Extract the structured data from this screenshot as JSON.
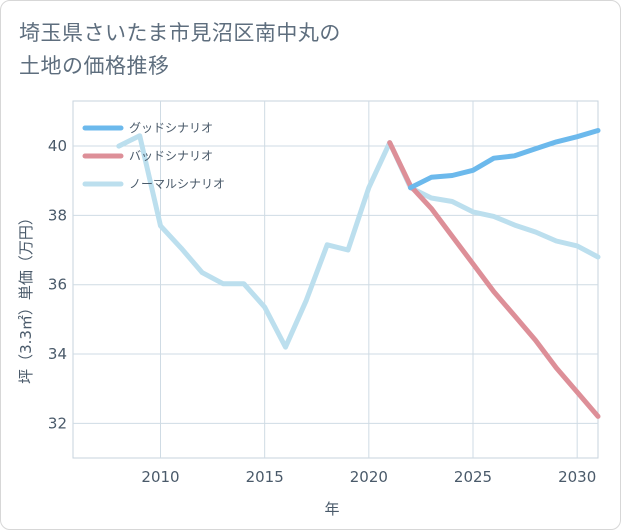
{
  "title_line1": "埼玉県さいたま市見沼区南中丸の",
  "title_line2": "土地の価格推移",
  "chart_data": {
    "type": "line",
    "title": "埼玉県さいたま市見沼区南中丸の土地の価格推移",
    "xlabel": "年",
    "ylabel": "坪（3.3㎡）単価（万円）",
    "xlim": [
      2005.8,
      2031
    ],
    "ylim": [
      31,
      41.3
    ],
    "xticks": [
      2010,
      2015,
      2020,
      2025,
      2030
    ],
    "yticks": [
      32,
      34,
      36,
      38,
      40
    ],
    "grid": true,
    "legend_position": "top-left",
    "series": [
      {
        "name": "グッドシナリオ",
        "color": "#6cb9ec",
        "x": [
          2022,
          2023,
          2024,
          2025,
          2026,
          2027,
          2028,
          2029,
          2030,
          2031
        ],
        "values": [
          38.8,
          39.1,
          39.15,
          39.3,
          39.65,
          39.72,
          39.92,
          40.12,
          40.27,
          40.45
        ]
      },
      {
        "name": "バッドシナリオ",
        "color": "#dd8f98",
        "x": [
          2021,
          2022,
          2023,
          2024,
          2025,
          2026,
          2027,
          2028,
          2029,
          2030,
          2031
        ],
        "values": [
          40.1,
          38.85,
          38.2,
          37.4,
          36.6,
          35.8,
          35.1,
          34.4,
          33.6,
          32.9,
          32.2
        ]
      },
      {
        "name": "ノーマルシナリオ",
        "color": "#bcdfee",
        "x": [
          2008,
          2009,
          2010,
          2011,
          2012,
          2013,
          2014,
          2015,
          2016,
          2017,
          2018,
          2019,
          2020,
          2021,
          2022,
          2023,
          2024,
          2025,
          2026,
          2027,
          2028,
          2029,
          2030,
          2031
        ],
        "values": [
          40.0,
          40.3,
          37.7,
          37.05,
          36.35,
          36.03,
          36.03,
          35.35,
          34.2,
          35.55,
          37.15,
          37.0,
          38.8,
          40.1,
          38.8,
          38.5,
          38.4,
          38.1,
          37.97,
          37.72,
          37.52,
          37.26,
          37.12,
          36.8
        ]
      }
    ]
  }
}
